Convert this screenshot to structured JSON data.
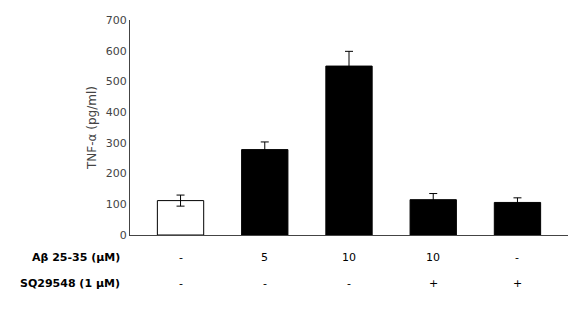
{
  "chart_data": {
    "type": "bar",
    "categories": [
      null,
      null,
      null,
      null,
      null
    ],
    "values": [
      112,
      278,
      550,
      115,
      106
    ],
    "errors": [
      18,
      25,
      48,
      20,
      15
    ],
    "colors": [
      "#ffffff",
      "#000000",
      "#000000",
      "#000000",
      "#000000"
    ],
    "ylabel": "TNF-α (pg/ml)",
    "ylim": [
      0,
      700
    ],
    "yticks": [
      0,
      100,
      200,
      300,
      400,
      500,
      600,
      700
    ],
    "grid": false,
    "annotations": [
      {
        "text": "Aβ 25-35 (μM)",
        "labels": [
          "-",
          "5",
          "10",
          "10",
          "-"
        ]
      },
      {
        "text": "SQ29548 (1 μM)",
        "labels": [
          "-",
          "-",
          "-",
          "+",
          "+"
        ]
      }
    ]
  }
}
